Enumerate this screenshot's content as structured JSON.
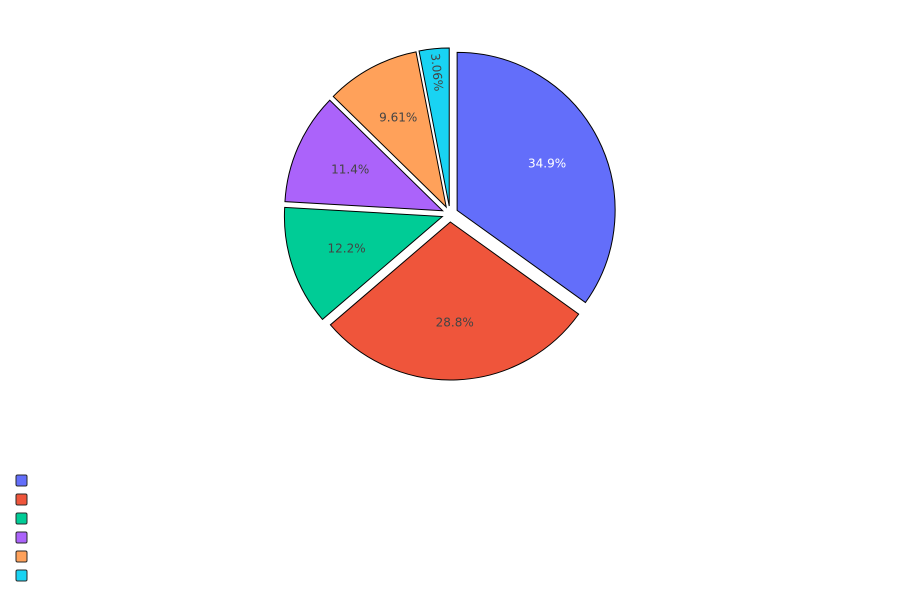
{
  "chart_data": {
    "type": "pie",
    "title": "",
    "labels": [
      "",
      "",
      "",
      "",
      "",
      ""
    ],
    "percent_labels": [
      "34.9%",
      "28.8%",
      "12.2%",
      "11.4%",
      "9.61%",
      "3.06%"
    ],
    "values": [
      34.9,
      28.8,
      12.2,
      11.4,
      9.61,
      3.06
    ],
    "colors": [
      "#636efa",
      "#EF553B",
      "#00cc96",
      "#ab63fa",
      "#FFA15A",
      "#19d3f3"
    ],
    "label_colors": [
      "#ffffff",
      "#444444",
      "#444444",
      "#444444",
      "#444444",
      "#444444"
    ],
    "slice_pull": "exploded",
    "direction": "clockwise",
    "start": "12 o'clock",
    "legend": {
      "placement": "bottom-left",
      "entries": [
        {
          "color": "#636efa",
          "label": ""
        },
        {
          "color": "#EF553B",
          "label": ""
        },
        {
          "color": "#00cc96",
          "label": ""
        },
        {
          "color": "#ab63fa",
          "label": ""
        },
        {
          "color": "#FFA15A",
          "label": ""
        },
        {
          "color": "#19d3f3",
          "label": ""
        }
      ]
    }
  }
}
